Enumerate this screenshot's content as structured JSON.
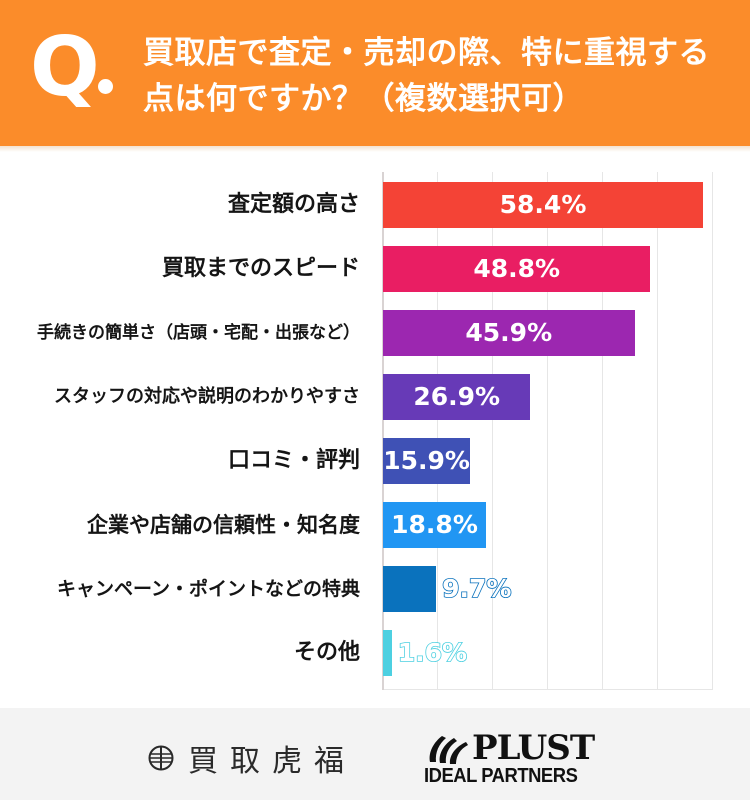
{
  "header": {
    "q_mark": "Q",
    "title": "買取店で査定・売却の際、特に重視する点は何ですか？（複数選択可）",
    "background_color": "#fb8c2a"
  },
  "chart_data": {
    "type": "bar",
    "orientation": "horizontal",
    "title": "買取店で査定・売却の際、特に重視する点は何ですか？（複数選択可）",
    "xlabel": "",
    "ylabel": "",
    "unit": "%",
    "xlim": [
      0,
      60
    ],
    "grid": true,
    "grid_step": 10,
    "legend": null,
    "categories": [
      "査定額の高さ",
      "買取までのスピード",
      "手続きの簡単さ（店頭・宅配・出張など）",
      "スタッフの対応や説明のわかりやすさ",
      "口コミ・評判",
      "企業や店舗の信頼性・知名度",
      "キャンペーン・ポイントなどの特典",
      "その他"
    ],
    "values": [
      58.4,
      48.8,
      45.9,
      26.9,
      15.9,
      18.8,
      9.7,
      1.6
    ],
    "value_labels": [
      "58.4%",
      "48.8%",
      "45.9%",
      "26.9%",
      "15.9%",
      "18.8%",
      "9.7%",
      "1.6%"
    ],
    "colors": [
      "#f44336",
      "#e91e63",
      "#9c27b0",
      "#673ab7",
      "#3f51b5",
      "#2196f3",
      "#0a72bd",
      "#4dd0e1"
    ]
  },
  "rows": [
    {
      "label": "査定額の高さ",
      "value": "58.4%",
      "pct": 58.4,
      "color": "#f44336",
      "font_size": 22,
      "outlined": false
    },
    {
      "label": "買取までのスピード",
      "value": "48.8%",
      "pct": 48.8,
      "color": "#e91e63",
      "font_size": 22,
      "outlined": false
    },
    {
      "label": "手続きの簡単さ（店頭・宅配・出張など）",
      "value": "45.9%",
      "pct": 45.9,
      "color": "#9c27b0",
      "font_size": 17,
      "outlined": false
    },
    {
      "label": "スタッフの対応や説明のわかりやすさ",
      "value": "26.9%",
      "pct": 26.9,
      "color": "#673ab7",
      "font_size": 18,
      "outlined": false
    },
    {
      "label": "口コミ・評判",
      "value": "15.9%",
      "pct": 15.9,
      "color": "#3f51b5",
      "font_size": 22,
      "outlined": false
    },
    {
      "label": "企業や店舗の信頼性・知名度",
      "value": "18.8%",
      "pct": 18.8,
      "color": "#2196f3",
      "font_size": 21,
      "outlined": false
    },
    {
      "label": "キャンペーン・ポイントなどの特典",
      "value": "9.7%",
      "pct": 9.7,
      "color": "#0a72bd",
      "font_size": 19,
      "outlined": true
    },
    {
      "label": "その他",
      "value": "1.6%",
      "pct": 1.6,
      "color": "#4dd0e1",
      "font_size": 22,
      "outlined": true
    }
  ],
  "footer": {
    "logo1_text": "買取虎福",
    "logo2_main": "PLUST",
    "logo2_sub": "IDEAL PARTNERS"
  }
}
